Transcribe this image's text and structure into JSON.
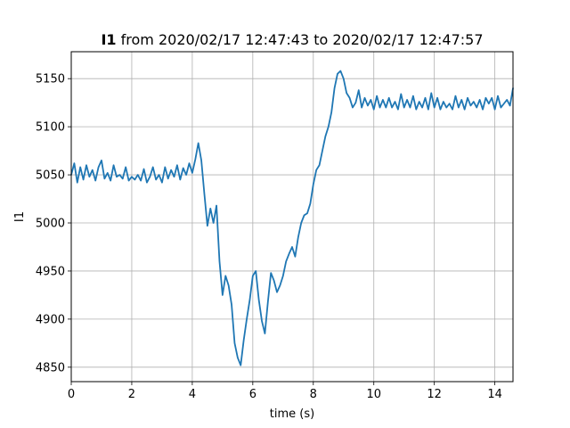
{
  "chart_data": {
    "type": "line",
    "title_bold": "I1",
    "title_rest": " from 2020/02/17 12:47:43 to 2020/02/17 12:47:57",
    "xlabel": "time (s)",
    "ylabel": "I1",
    "xlim": [
      0,
      14.6
    ],
    "ylim": [
      4835,
      5178
    ],
    "xticks": [
      0,
      2,
      4,
      6,
      8,
      10,
      12,
      14
    ],
    "yticks": [
      4850,
      4900,
      4950,
      5000,
      5050,
      5100,
      5150
    ],
    "grid": true,
    "line_color": "#1f77b4",
    "series": [
      {
        "x": [
          0.0,
          0.1,
          0.2,
          0.3,
          0.4,
          0.5,
          0.6,
          0.7,
          0.8,
          0.9,
          1.0,
          1.1,
          1.2,
          1.3,
          1.4,
          1.5,
          1.6,
          1.7,
          1.8,
          1.9,
          2.0,
          2.1,
          2.2,
          2.3,
          2.4,
          2.5,
          2.6,
          2.7,
          2.8,
          2.9,
          3.0,
          3.1,
          3.2,
          3.3,
          3.4,
          3.5,
          3.6,
          3.7,
          3.8,
          3.9,
          4.0,
          4.1,
          4.2,
          4.3,
          4.4,
          4.5,
          4.6,
          4.7,
          4.8,
          4.9,
          5.0,
          5.1,
          5.2,
          5.3,
          5.4,
          5.5,
          5.6,
          5.7,
          5.8,
          5.9,
          6.0,
          6.1,
          6.2,
          6.3,
          6.4,
          6.5,
          6.6,
          6.7,
          6.8,
          6.9,
          7.0,
          7.1,
          7.2,
          7.3,
          7.4,
          7.5,
          7.6,
          7.7,
          7.8,
          7.9,
          8.0,
          8.1,
          8.2,
          8.3,
          8.4,
          8.5,
          8.6,
          8.7,
          8.8,
          8.9,
          9.0,
          9.1,
          9.2,
          9.3,
          9.4,
          9.5,
          9.6,
          9.7,
          9.8,
          9.9,
          10.0,
          10.1,
          10.2,
          10.3,
          10.4,
          10.5,
          10.6,
          10.7,
          10.8,
          10.9,
          11.0,
          11.1,
          11.2,
          11.3,
          11.4,
          11.5,
          11.6,
          11.7,
          11.8,
          11.9,
          12.0,
          12.1,
          12.2,
          12.3,
          12.4,
          12.5,
          12.6,
          12.7,
          12.8,
          12.9,
          13.0,
          13.1,
          13.2,
          13.3,
          13.4,
          13.5,
          13.6,
          13.7,
          13.8,
          13.9,
          14.0,
          14.1,
          14.2,
          14.3,
          14.4,
          14.5,
          14.6
        ],
        "y": [
          5050,
          5062,
          5042,
          5058,
          5045,
          5060,
          5048,
          5055,
          5044,
          5058,
          5065,
          5046,
          5052,
          5044,
          5060,
          5048,
          5050,
          5046,
          5058,
          5044,
          5048,
          5045,
          5050,
          5044,
          5056,
          5042,
          5048,
          5058,
          5045,
          5050,
          5042,
          5058,
          5046,
          5055,
          5048,
          5060,
          5045,
          5057,
          5050,
          5062,
          5052,
          5066,
          5083,
          5065,
          5030,
          4997,
          5015,
          5000,
          5018,
          4960,
          4925,
          4945,
          4935,
          4915,
          4875,
          4860,
          4852,
          4878,
          4900,
          4920,
          4945,
          4950,
          4920,
          4898,
          4885,
          4918,
          4948,
          4940,
          4928,
          4935,
          4945,
          4960,
          4968,
          4975,
          4965,
          4985,
          5000,
          5008,
          5010,
          5020,
          5040,
          5055,
          5060,
          5075,
          5090,
          5100,
          5115,
          5140,
          5155,
          5158,
          5150,
          5135,
          5130,
          5120,
          5125,
          5138,
          5120,
          5130,
          5122,
          5128,
          5118,
          5132,
          5120,
          5128,
          5120,
          5130,
          5120,
          5126,
          5118,
          5134,
          5120,
          5128,
          5120,
          5132,
          5118,
          5126,
          5120,
          5130,
          5118,
          5135,
          5120,
          5130,
          5118,
          5126,
          5120,
          5124,
          5118,
          5132,
          5120,
          5128,
          5118,
          5130,
          5122,
          5126,
          5120,
          5128,
          5118,
          5130,
          5124,
          5130,
          5118,
          5132,
          5120,
          5124,
          5128,
          5122,
          5140
        ]
      }
    ]
  }
}
